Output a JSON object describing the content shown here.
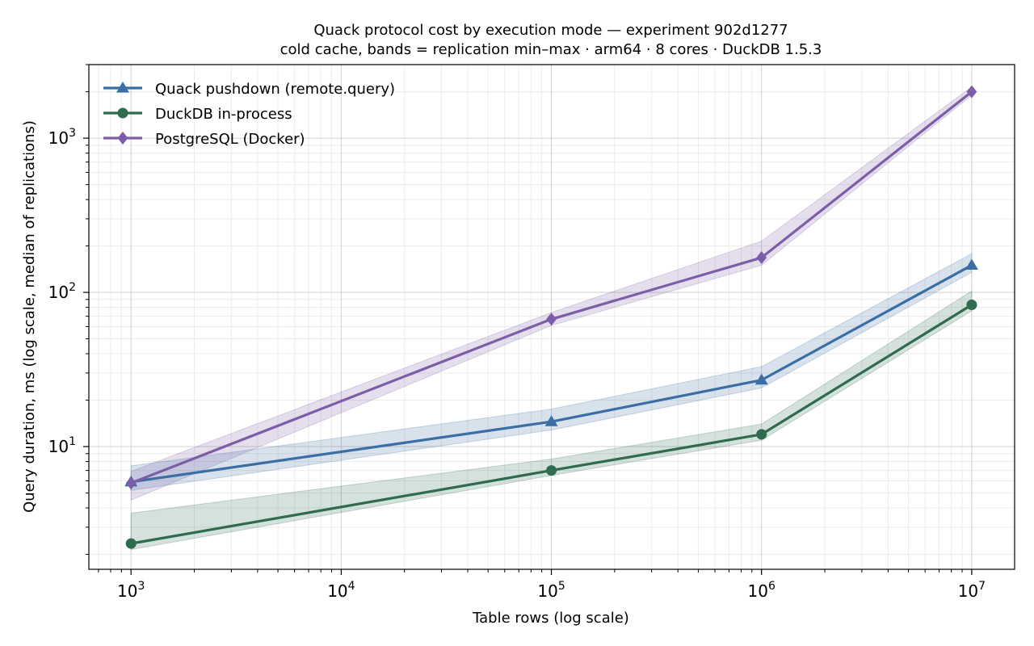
{
  "chart_data": {
    "type": "line",
    "title": "Quack protocol cost by execution mode — experiment 902d1277",
    "subtitle": "cold cache, bands = replication min–max · arm64 · 8 cores · DuckDB 1.5.3",
    "xlabel": "Table rows (log scale)",
    "ylabel": "Query duration, ms (log scale, median of replications)",
    "xscale": "log",
    "yscale": "log",
    "xlim": [
      630,
      16000000
    ],
    "ylim": [
      1.6,
      3000
    ],
    "grid": true,
    "legend_position": "top-left",
    "x_ticks": [
      {
        "base": "10",
        "exp": "3",
        "value": 1000
      },
      {
        "base": "10",
        "exp": "4",
        "value": 10000
      },
      {
        "base": "10",
        "exp": "5",
        "value": 100000
      },
      {
        "base": "10",
        "exp": "6",
        "value": 1000000
      },
      {
        "base": "10",
        "exp": "7",
        "value": 10000000
      }
    ],
    "y_ticks": [
      {
        "base": "10",
        "exp": "1",
        "value": 10
      },
      {
        "base": "10",
        "exp": "2",
        "value": 100
      },
      {
        "base": "10",
        "exp": "3",
        "value": 1000
      }
    ],
    "x": [
      1000,
      100000,
      1000000,
      10000000
    ],
    "series": [
      {
        "name": "Quack pushdown (remote.query)",
        "color": "#3a6ea5",
        "marker": "triangle",
        "values": [
          5.9,
          14.5,
          27,
          150
        ],
        "band_min": [
          5.2,
          12.8,
          24,
          135
        ],
        "band_max": [
          7.5,
          17.5,
          33,
          178
        ]
      },
      {
        "name": "DuckDB in-process",
        "color": "#2e6b4f",
        "marker": "circle",
        "values": [
          2.35,
          7.0,
          12,
          83
        ],
        "band_min": [
          2.15,
          6.5,
          11,
          76
        ],
        "band_max": [
          3.7,
          8.3,
          14,
          102
        ]
      },
      {
        "name": "PostgreSQL (Docker)",
        "color": "#7b5ea7",
        "marker": "diamond",
        "values": [
          5.8,
          67,
          168,
          2000
        ],
        "band_min": [
          4.5,
          61,
          150,
          1900
        ],
        "band_max": [
          6.9,
          74,
          215,
          2150
        ]
      }
    ]
  }
}
